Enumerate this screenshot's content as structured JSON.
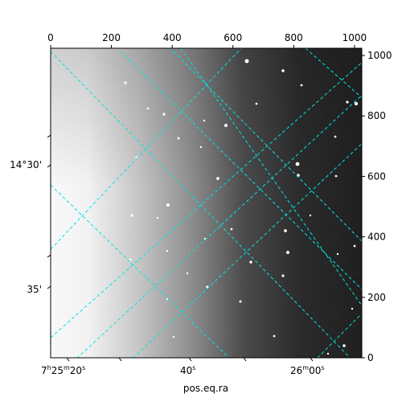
{
  "chart_data": {
    "type": "image",
    "xlabel": "pos.eq.ra",
    "ylabel": "",
    "pixel_x_ticks": [
      0,
      200,
      400,
      600,
      800,
      1000
    ],
    "pixel_y_ticks": [
      0,
      200,
      400,
      600,
      800,
      1000
    ],
    "pixel_range": [
      0,
      1024
    ],
    "ra_ticks": [
      {
        "label": "7h25m20s",
        "h": "7",
        "m": "25",
        "s": "20"
      },
      {
        "label": "40s",
        "s": "40"
      },
      {
        "label": "26m00s",
        "m": "26",
        "s": "00"
      }
    ],
    "dec_ticks": [
      "14°30'",
      "35'"
    ],
    "grid": true,
    "grid_color": "#00e5e5",
    "image_colormap": "gray",
    "image_gradient": "bright on the left, dark on the right"
  }
}
